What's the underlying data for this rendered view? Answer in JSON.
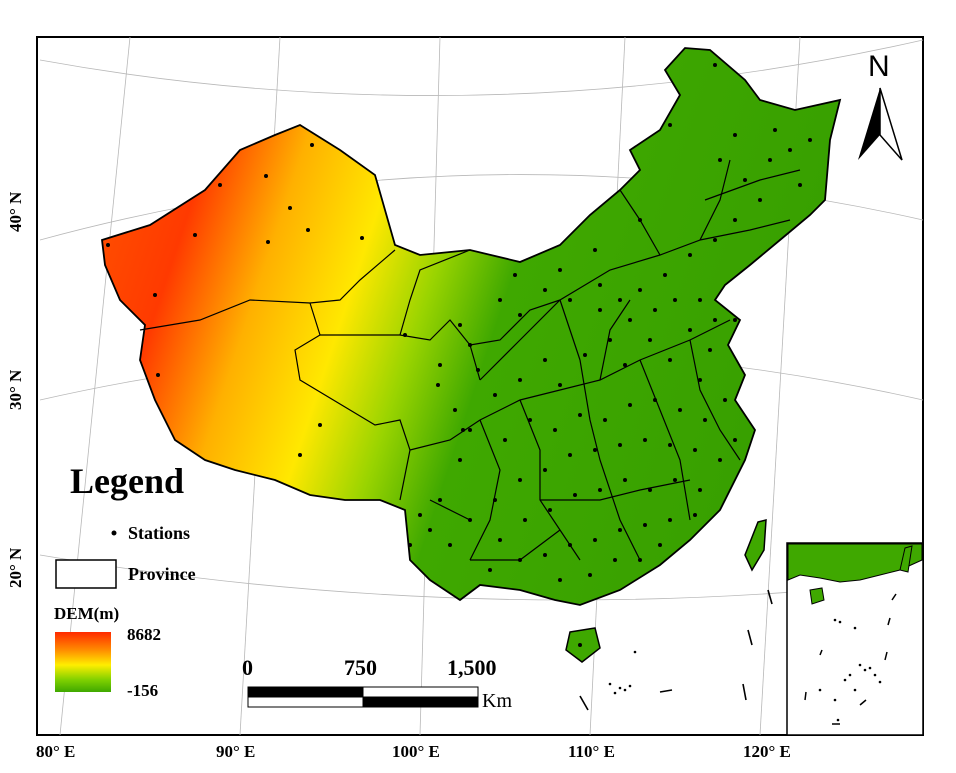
{
  "map": {
    "north_label": "N",
    "legend_title": "Legend",
    "legend_stations": "Stations",
    "legend_province": "Province",
    "dem_title": "DEM(m)",
    "dem_max": "8682",
    "dem_min": "-156",
    "dem_colors": [
      "#ff2a00",
      "#ff8c00",
      "#ffee00",
      "#7fd000",
      "#3fa800"
    ],
    "scale_ticks": [
      "0",
      "750",
      "1,500"
    ],
    "scale_unit": "Km",
    "longitude_labels": [
      "80° E",
      "90° E",
      "100° E",
      "110° E",
      "120° E"
    ],
    "latitude_labels": [
      "40° N",
      "30° N",
      "20° N"
    ]
  }
}
